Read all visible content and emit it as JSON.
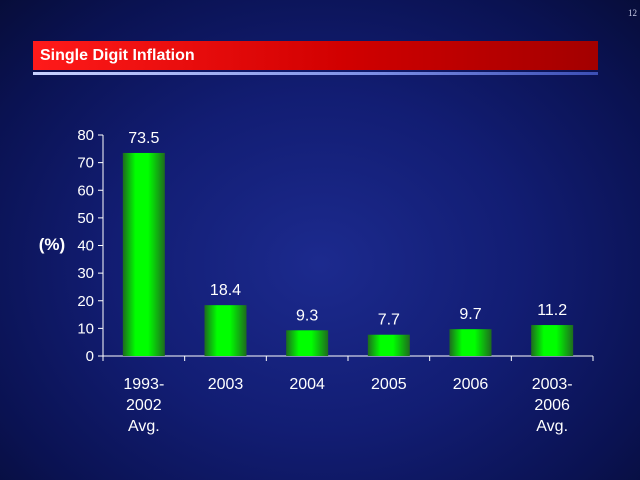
{
  "page_number": "12",
  "title": "Single Digit Inflation",
  "chart_data": {
    "type": "bar",
    "categories": [
      [
        "1993-",
        "2002",
        "Avg."
      ],
      [
        "2003"
      ],
      [
        "2004"
      ],
      [
        "2005"
      ],
      [
        "2006"
      ],
      [
        "2003-",
        "2006",
        "Avg."
      ]
    ],
    "values": [
      73.5,
      18.4,
      9.3,
      7.7,
      9.7,
      11.2
    ],
    "data_labels": [
      "73.5",
      "18.4",
      "9.3",
      "7.7",
      "9.7",
      "11.2"
    ],
    "ylabel": "(%)",
    "ylim": [
      0,
      80
    ],
    "yticks": [
      0,
      10,
      20,
      30,
      40,
      50,
      60,
      70,
      80
    ],
    "grid": false,
    "colors": {
      "bar": "#00ff00",
      "bar_shade": "#1e6b1e",
      "axis": "#ffffff"
    }
  }
}
